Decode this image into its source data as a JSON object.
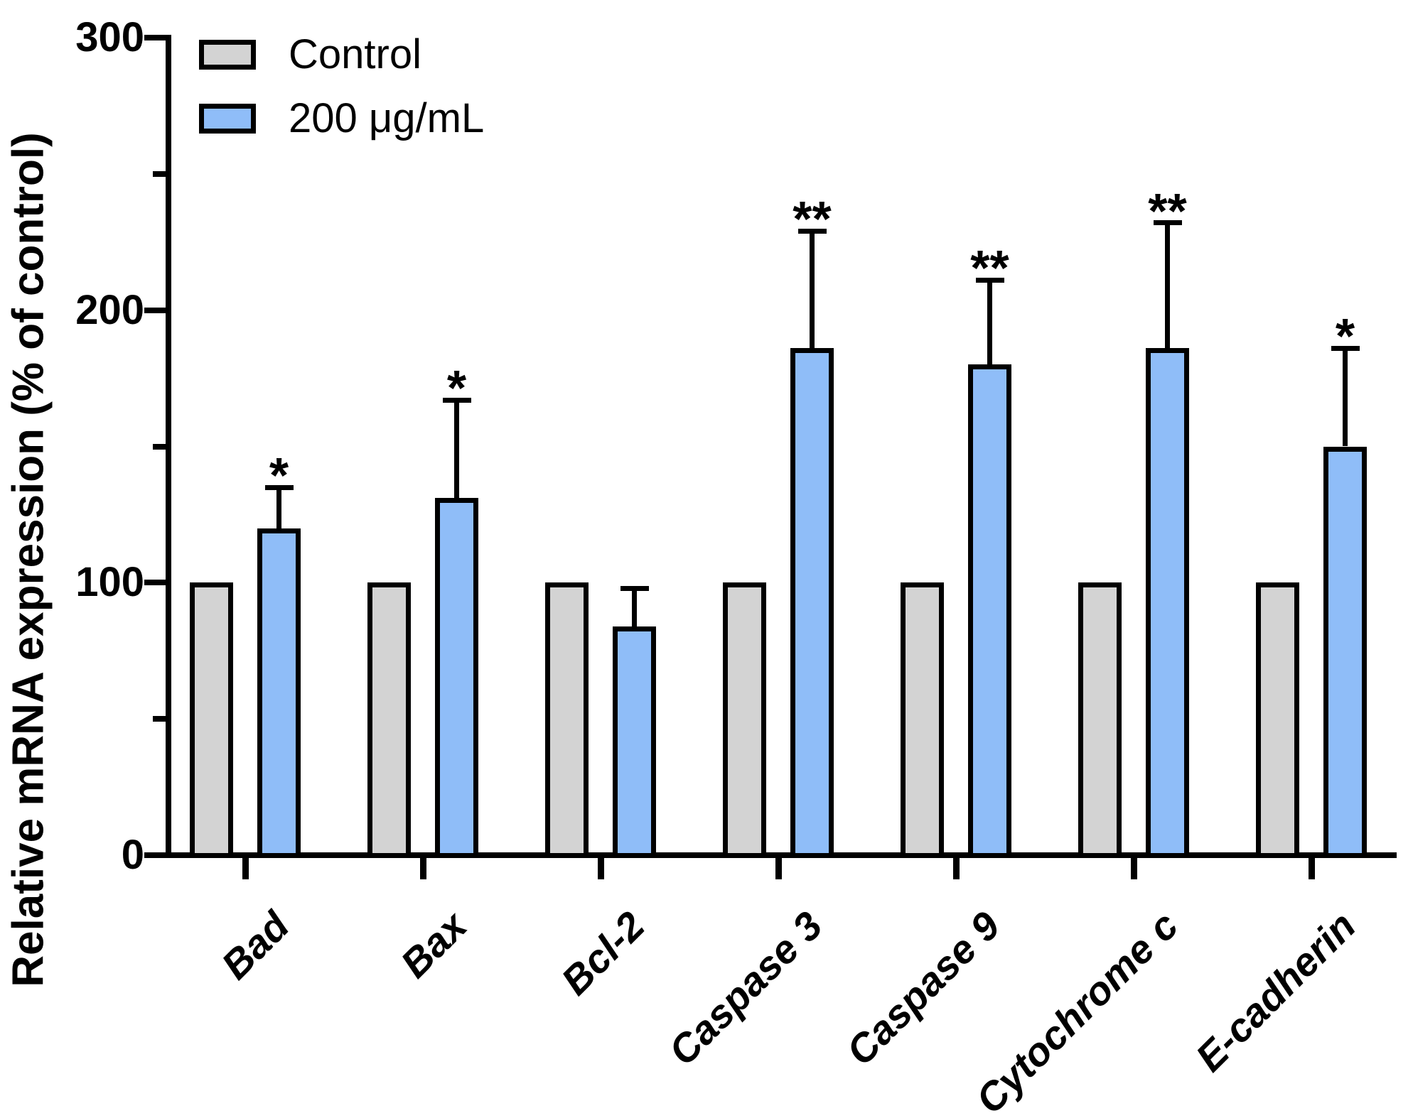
{
  "figure": {
    "background": "#ffffff",
    "bar_outline_color": "#000000",
    "axis_color": "#000000"
  },
  "chart_data": {
    "type": "bar",
    "title": "",
    "xlabel": "",
    "ylabel": "Relative mRNA expression (% of control)",
    "ylim": [
      0,
      300
    ],
    "ytick_major": [
      0,
      100,
      200,
      300
    ],
    "ytick_minor": [
      50,
      150,
      250
    ],
    "grid": false,
    "legend_position": "top-left",
    "categories": [
      "Bad",
      "Bax",
      "Bcl-2",
      "Caspase 3",
      "Caspase 9",
      "Cytochrome c",
      "E-cadherin"
    ],
    "series": [
      {
        "name": "Control",
        "color": "#d3d3d3",
        "values": [
          100,
          100,
          100,
          100,
          100,
          100,
          100
        ],
        "error_up": [
          0,
          0,
          0,
          0,
          0,
          0,
          0
        ],
        "significance": [
          "",
          "",
          "",
          "",
          "",
          "",
          ""
        ]
      },
      {
        "name": "200 μg/mL",
        "color": "#8fbdf8",
        "values": [
          120,
          131,
          84,
          186,
          180,
          186,
          150
        ],
        "error_up": [
          15,
          36,
          14,
          43,
          31,
          46,
          36
        ],
        "significance": [
          "*",
          "*",
          "",
          "**",
          "**",
          "**",
          "*"
        ]
      }
    ]
  }
}
